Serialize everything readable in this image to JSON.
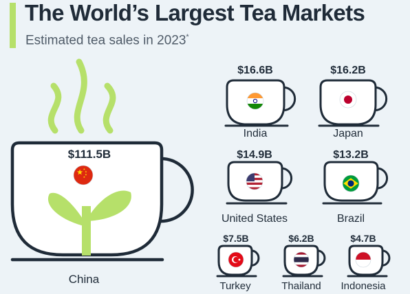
{
  "title": "The World’s Largest Tea Markets",
  "subtitle": "Estimated tea sales in 2023",
  "subtitle_mark": "*",
  "colors": {
    "ink": "#1f2b38",
    "accent": "#b6e06a",
    "background": "#edf3f7"
  },
  "chart_data": {
    "type": "bar",
    "title": "The World’s Largest Tea Markets",
    "subtitle": "Estimated tea sales in 2023",
    "unit": "billion USD",
    "categories": [
      "China",
      "India",
      "Japan",
      "United States",
      "Brazil",
      "Turkey",
      "Thailand",
      "Indonesia"
    ],
    "values": [
      111.5,
      16.6,
      16.2,
      14.9,
      13.2,
      7.5,
      6.2,
      4.7
    ],
    "value_labels": [
      "$111.5B",
      "$16.6B",
      "$16.2B",
      "$14.9B",
      "$13.2B",
      "$7.5B",
      "$6.2B",
      "$4.7B"
    ],
    "flags": [
      "china-flag",
      "india-flag",
      "japan-flag",
      "usa-flag",
      "brazil-flag",
      "turkey-flag",
      "thailand-flag",
      "indonesia-flag"
    ]
  }
}
